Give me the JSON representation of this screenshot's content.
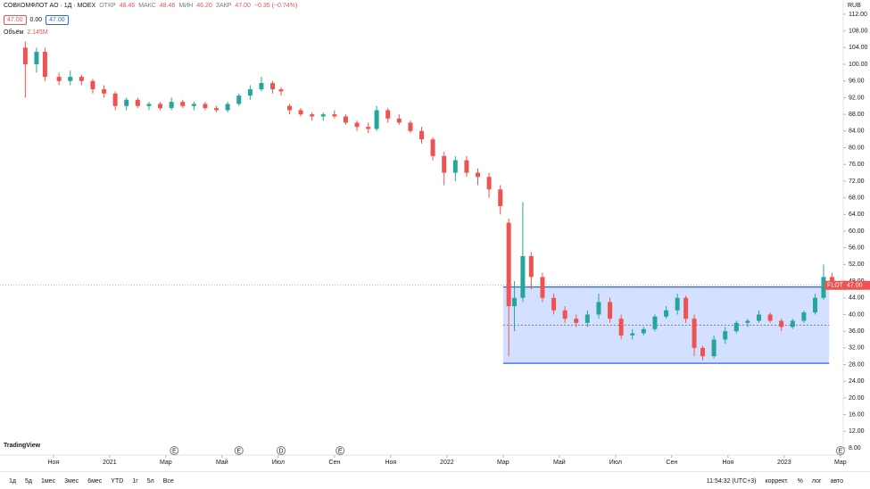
{
  "header": {
    "symbol": "СОВКОМФЛОТ АО · 1Д · MOEX",
    "open_label": "ОТКР",
    "open": "48.46",
    "high_label": "МАКС",
    "high": "48.46",
    "low_label": "МИН",
    "low": "46.20",
    "close_label": "ЗАКР",
    "close": "47.00",
    "change": "−0.35 (−0.74%)",
    "bid": "47.00",
    "spread": "0.00",
    "ask": "47.00",
    "volume_label": "Объём",
    "volume": "2.145M",
    "currency": "RUB",
    "logo": "TradingView"
  },
  "toolbar": {
    "ranges": [
      "1д",
      "5д",
      "1мес",
      "3мес",
      "6мес",
      "YTD",
      "1г",
      "5л",
      "Все"
    ],
    "time": "11:54:32 (UTC+3)",
    "adjust": "коррект.",
    "percent": "%",
    "log": "лог",
    "auto": "авто"
  },
  "chart_data": {
    "type": "candlestick",
    "up_color": "#26a69a",
    "down_color": "#ef5350",
    "x": [
      -1.0,
      -0.6,
      -0.3,
      0.2,
      0.6,
      1.0,
      1.4,
      1.8,
      2.2,
      2.6,
      3.0,
      3.4,
      3.8,
      4.2,
      4.6,
      5.0,
      5.4,
      5.8,
      6.2,
      6.6,
      7.0,
      7.4,
      7.8,
      8.1,
      8.4,
      8.8,
      9.2,
      9.6,
      10.0,
      10.4,
      10.8,
      11.2,
      11.5,
      11.9,
      12.3,
      12.7,
      13.1,
      13.5,
      13.9,
      14.3,
      14.7,
      15.1,
      15.5,
      15.9,
      16.2,
      16.4,
      16.7,
      17.0,
      17.4,
      17.8,
      18.2,
      18.6,
      19.0,
      19.4,
      19.8,
      20.2,
      20.6,
      21.0,
      21.4,
      21.8,
      22.2,
      22.5,
      22.8,
      23.1,
      23.5,
      23.9,
      24.3,
      24.7,
      25.1,
      25.5,
      25.9,
      26.3,
      26.7,
      27.1,
      27.4,
      27.7
    ],
    "open": [
      104,
      100,
      103,
      97,
      96,
      97,
      96,
      94,
      93,
      90,
      91.5,
      90,
      90.5,
      89.5,
      91,
      90,
      90.5,
      89.5,
      89,
      90.5,
      92.5,
      94,
      95.5,
      94,
      90,
      89,
      88,
      87.5,
      88,
      87.5,
      86,
      85,
      84.5,
      89,
      87,
      86,
      84,
      82,
      78,
      74,
      77,
      74,
      73,
      70,
      62,
      42,
      44,
      54,
      49,
      44,
      41,
      39,
      38,
      40,
      43,
      39,
      35,
      35.5,
      36.5,
      39.5,
      41,
      44,
      39,
      32,
      30,
      34,
      36,
      38,
      38.5,
      40,
      38.5,
      37,
      38.5,
      40.5,
      44,
      49
    ],
    "high": [
      105.5,
      104,
      104,
      98,
      98.5,
      97.5,
      96.5,
      95,
      93.5,
      92,
      92,
      91,
      91,
      92,
      91.5,
      91,
      91,
      90,
      91,
      93,
      95,
      97,
      96,
      94.5,
      90.5,
      89.5,
      88.5,
      88.5,
      89,
      88,
      86.5,
      86,
      90,
      89.5,
      88,
      86.5,
      85,
      82.5,
      79,
      78,
      78,
      75,
      74,
      71,
      63,
      48,
      67,
      55,
      50,
      45,
      42,
      40,
      41,
      45,
      44,
      40,
      36.5,
      37,
      40,
      42,
      45,
      44.5,
      40,
      32.5,
      35,
      37,
      38.5,
      39,
      41,
      40.5,
      39,
      39,
      41,
      45,
      52,
      50
    ],
    "low": [
      92,
      98,
      96,
      95,
      95,
      95,
      93,
      92,
      89,
      89,
      89.5,
      89,
      89,
      89,
      89.5,
      89,
      89,
      88.5,
      88.5,
      90,
      91.5,
      93.5,
      93,
      92.5,
      88,
      87.5,
      86.5,
      86.5,
      87,
      85.5,
      84,
      83.5,
      84,
      86,
      85.5,
      83.5,
      81,
      77,
      71,
      72,
      73,
      71,
      68,
      64,
      30,
      36,
      43,
      46,
      43,
      40,
      38,
      37,
      37,
      39,
      38,
      34,
      34,
      35,
      36,
      39,
      40,
      38,
      30,
      29,
      29.5,
      33,
      35.5,
      37,
      38,
      38,
      36,
      36.5,
      38,
      40,
      43.5,
      46.2
    ],
    "close": [
      100,
      103,
      97,
      96,
      97,
      96,
      94,
      93,
      90,
      91.5,
      90,
      90.5,
      89.5,
      91,
      90,
      90.5,
      89.5,
      89,
      90.5,
      92.5,
      94,
      95.5,
      94,
      93.5,
      89,
      88,
      87.5,
      88,
      87.5,
      86,
      85,
      84.5,
      89,
      87,
      86,
      84,
      82,
      78,
      74,
      77,
      74,
      73,
      70,
      66,
      42,
      44,
      54,
      49,
      44,
      41,
      39,
      38,
      40,
      43,
      39,
      35,
      35.5,
      36.5,
      39.5,
      41,
      44,
      39,
      32,
      30,
      34,
      36,
      38,
      38.5,
      40,
      38.5,
      37,
      38.5,
      40.5,
      44,
      49,
      47
    ],
    "range_box": {
      "x": [
        16.0,
        27.6
      ],
      "y": [
        28.3,
        46.6
      ]
    },
    "last_price": 47,
    "last_price_label": "47.00",
    "symbol_tag": "FLOT",
    "events": [
      {
        "x": 4.3,
        "label": "E"
      },
      {
        "x": 6.6,
        "label": "E"
      },
      {
        "x": 8.1,
        "label": "D"
      },
      {
        "x": 10.2,
        "label": "E"
      },
      {
        "x": 28.0,
        "label": "E"
      }
    ],
    "xlim": [
      -1.9,
      28.1
    ],
    "xticks": [
      {
        "value": 0,
        "label": "Ноя"
      },
      {
        "value": 2,
        "label": "2021"
      },
      {
        "value": 4,
        "label": "Мар"
      },
      {
        "value": 6,
        "label": "Май"
      },
      {
        "value": 8,
        "label": "Июл"
      },
      {
        "value": 10,
        "label": "Сен"
      },
      {
        "value": 12,
        "label": "Ноя"
      },
      {
        "value": 14,
        "label": "2022"
      },
      {
        "value": 16,
        "label": "Мар"
      },
      {
        "value": 18,
        "label": "Май"
      },
      {
        "value": 20,
        "label": "Июл"
      },
      {
        "value": 22,
        "label": "Сен"
      },
      {
        "value": 24,
        "label": "Ноя"
      },
      {
        "value": 26,
        "label": "2023"
      },
      {
        "value": 28,
        "label": "Мар"
      }
    ],
    "ylim": [
      8,
      112
    ],
    "yticks": [
      {
        "value": 8,
        "label": "8.00"
      },
      {
        "value": 12,
        "label": "12.00"
      },
      {
        "value": 16,
        "label": "16.00"
      },
      {
        "value": 20,
        "label": "20.00"
      },
      {
        "value": 24,
        "label": "24.00"
      },
      {
        "value": 28,
        "label": "28.00"
      },
      {
        "value": 32,
        "label": "32.00"
      },
      {
        "value": 36,
        "label": "36.00"
      },
      {
        "value": 40,
        "label": "40.00"
      },
      {
        "value": 44,
        "label": "44.00"
      },
      {
        "value": 48,
        "label": "48.00"
      },
      {
        "value": 52,
        "label": "52.00"
      },
      {
        "value": 56,
        "label": "56.00"
      },
      {
        "value": 60,
        "label": "60.00"
      },
      {
        "value": 64,
        "label": "64.00"
      },
      {
        "value": 68,
        "label": "68.00"
      },
      {
        "value": 72,
        "label": "72.00"
      },
      {
        "value": 76,
        "label": "76.00"
      },
      {
        "value": 80,
        "label": "80.00"
      },
      {
        "value": 84,
        "label": "84.00"
      },
      {
        "value": 88,
        "label": "88.00"
      },
      {
        "value": 92,
        "label": "92.00"
      },
      {
        "value": 96,
        "label": "96.00"
      },
      {
        "value": 100,
        "label": "100.00"
      },
      {
        "value": 104,
        "label": "104.00"
      },
      {
        "value": 108,
        "label": "108.00"
      },
      {
        "value": 112,
        "label": "112.00"
      }
    ]
  }
}
